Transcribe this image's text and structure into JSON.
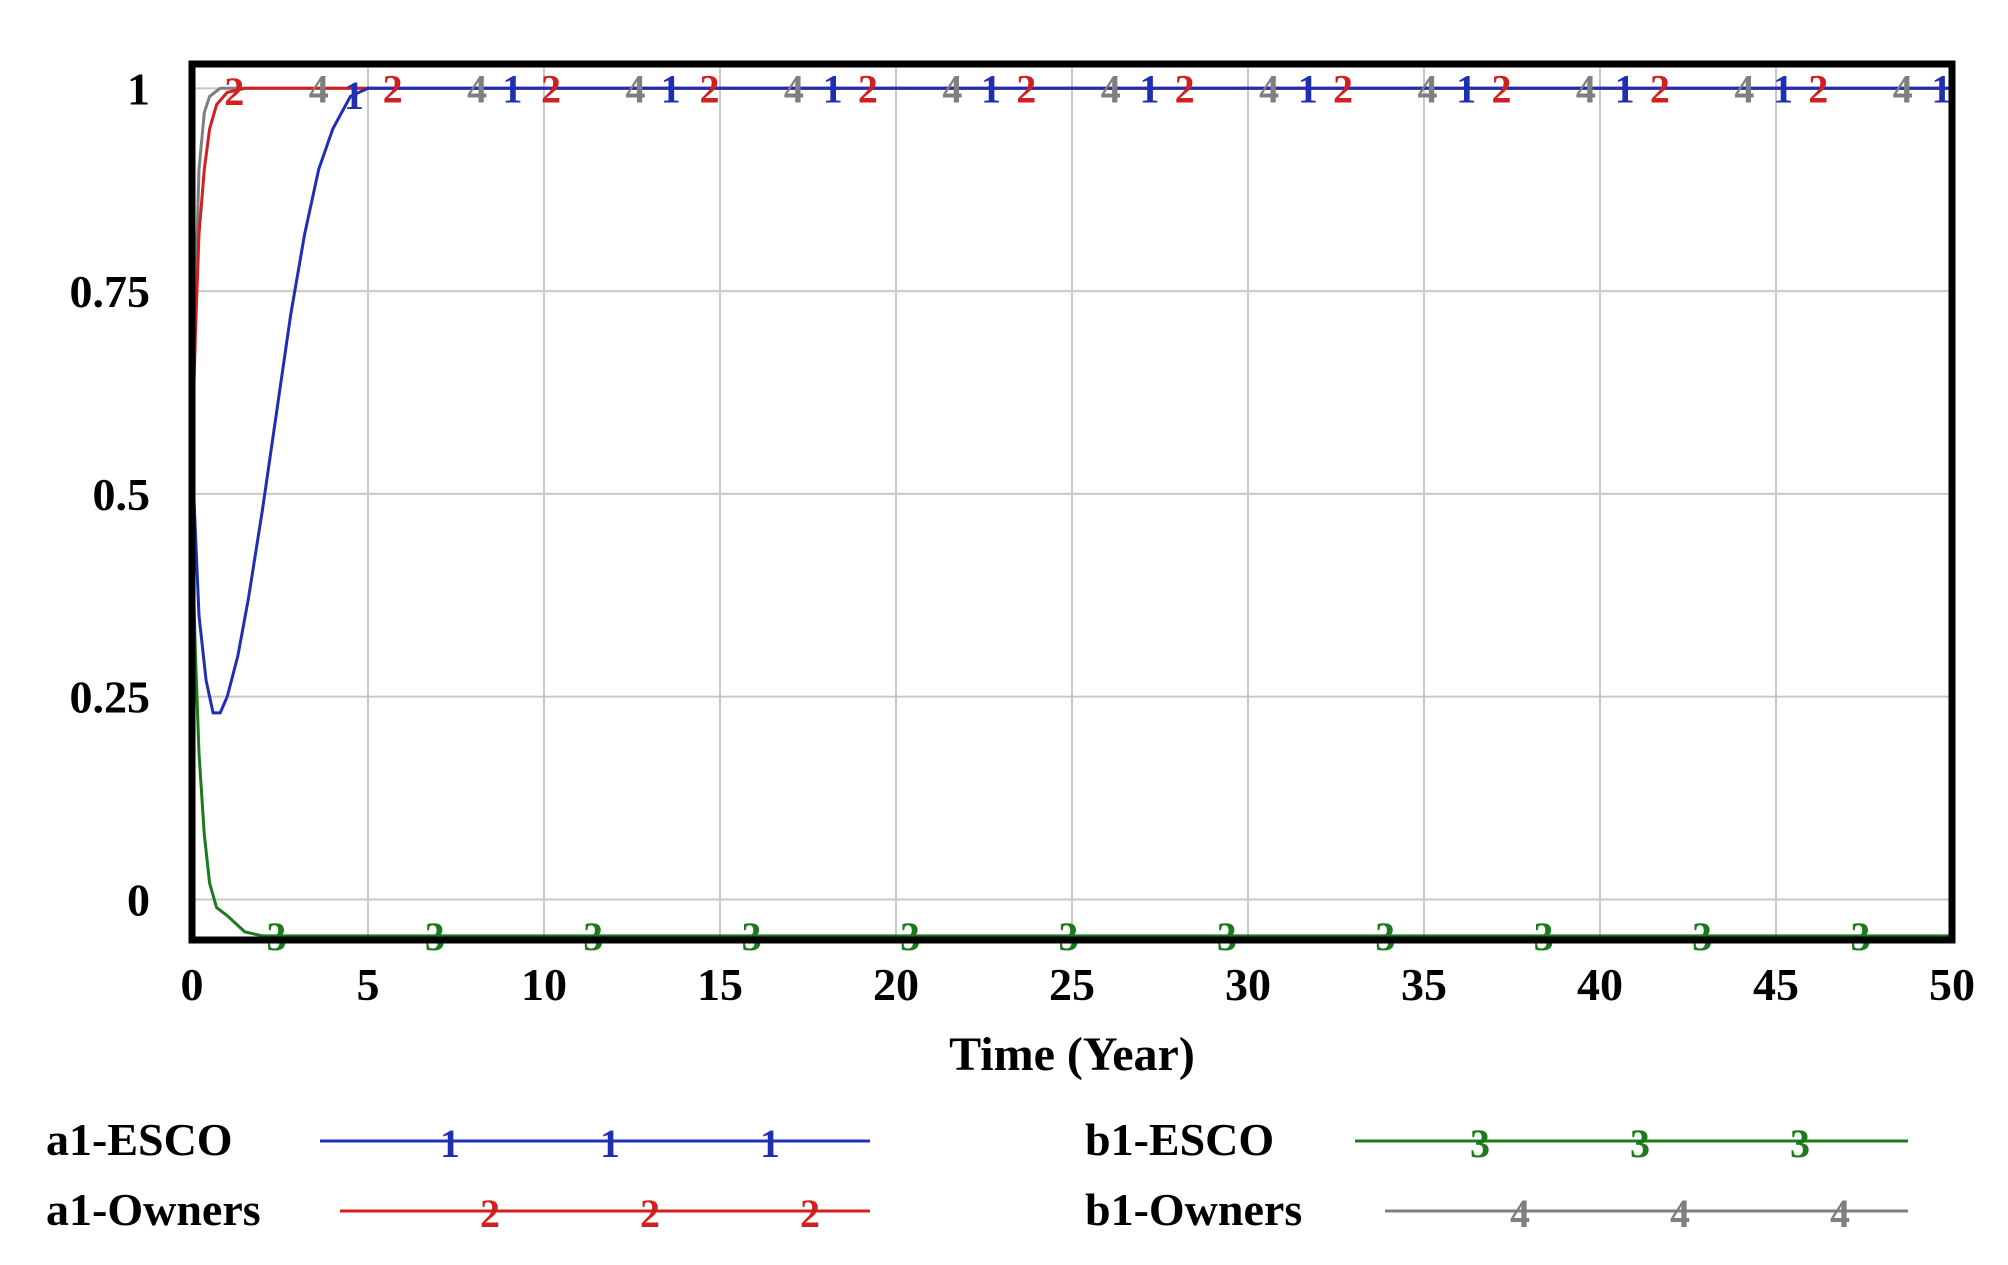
{
  "chart_data": {
    "type": "line",
    "title": "",
    "xlabel": "Time (Year)",
    "ylabel": "",
    "xlim": [
      0,
      50
    ],
    "ylim": [
      -0.05,
      1.03
    ],
    "x_ticks": [
      0,
      5,
      10,
      15,
      20,
      25,
      30,
      35,
      40,
      45,
      50
    ],
    "x_tick_labels": [
      "0",
      "5",
      "10",
      "15",
      "20",
      "25",
      "30",
      "35",
      "40",
      "45",
      "50"
    ],
    "y_ticks": [
      0,
      0.25,
      0.5,
      0.75,
      1
    ],
    "y_tick_labels": [
      "0",
      "0.25",
      "0.5",
      "0.75",
      "1"
    ],
    "grid": true,
    "legend_position": "bottom",
    "series": [
      {
        "name": "a1-ESCO",
        "marker": "1",
        "color": "#1f2fb4",
        "points": [
          [
            0,
            0.55
          ],
          [
            0.2,
            0.35
          ],
          [
            0.4,
            0.27
          ],
          [
            0.6,
            0.23
          ],
          [
            0.8,
            0.23
          ],
          [
            1,
            0.25
          ],
          [
            1.3,
            0.3
          ],
          [
            1.6,
            0.37
          ],
          [
            2,
            0.48
          ],
          [
            2.4,
            0.6
          ],
          [
            2.8,
            0.72
          ],
          [
            3.2,
            0.82
          ],
          [
            3.6,
            0.9
          ],
          [
            4,
            0.95
          ],
          [
            4.5,
            0.99
          ],
          [
            5,
            1.0
          ],
          [
            10,
            1.0
          ],
          [
            20,
            1.0
          ],
          [
            30,
            1.0
          ],
          [
            40,
            1.0
          ],
          [
            50,
            1.0
          ]
        ]
      },
      {
        "name": "a1-Owners",
        "marker": "2",
        "color": "#d21f1f",
        "points": [
          [
            0,
            0.55
          ],
          [
            0.1,
            0.7
          ],
          [
            0.2,
            0.82
          ],
          [
            0.35,
            0.9
          ],
          [
            0.5,
            0.95
          ],
          [
            0.7,
            0.98
          ],
          [
            1,
            0.995
          ],
          [
            1.5,
            1.0
          ],
          [
            5,
            1.0
          ],
          [
            10,
            1.0
          ],
          [
            20,
            1.0
          ],
          [
            30,
            1.0
          ],
          [
            40,
            1.0
          ],
          [
            50,
            1.0
          ]
        ]
      },
      {
        "name": "b1-ESCO",
        "marker": "3",
        "color": "#1b7a1b",
        "points": [
          [
            0,
            0.45
          ],
          [
            0.1,
            0.3
          ],
          [
            0.2,
            0.18
          ],
          [
            0.35,
            0.08
          ],
          [
            0.5,
            0.02
          ],
          [
            0.7,
            -0.01
          ],
          [
            1,
            -0.02
          ],
          [
            1.5,
            -0.04
          ],
          [
            2,
            -0.045
          ],
          [
            3,
            -0.045
          ],
          [
            10,
            -0.045
          ],
          [
            20,
            -0.045
          ],
          [
            30,
            -0.045
          ],
          [
            40,
            -0.045
          ],
          [
            50,
            -0.045
          ]
        ]
      },
      {
        "name": "b1-Owners",
        "marker": "4",
        "color": "#7f7f7f",
        "points": [
          [
            0,
            0.5
          ],
          [
            0.1,
            0.75
          ],
          [
            0.2,
            0.9
          ],
          [
            0.35,
            0.97
          ],
          [
            0.5,
            0.99
          ],
          [
            0.8,
            1.0
          ],
          [
            5,
            1.0
          ],
          [
            10,
            1.0
          ],
          [
            20,
            1.0
          ],
          [
            30,
            1.0
          ],
          [
            40,
            1.0
          ],
          [
            50,
            1.0
          ]
        ]
      }
    ],
    "curve_markers": [
      {
        "series": 0,
        "label": "1",
        "x": [
          4.6,
          9.1,
          13.6,
          18.2,
          22.7,
          27.2,
          31.7,
          36.2,
          40.7,
          45.2,
          49.7
        ]
      },
      {
        "series": 1,
        "label": "2",
        "x": [
          1.2,
          5.7,
          10.2,
          14.7,
          19.2,
          23.7,
          28.2,
          32.7,
          37.2,
          41.7,
          46.2
        ]
      },
      {
        "series": 2,
        "label": "3",
        "x": [
          2.4,
          6.9,
          11.4,
          15.9,
          20.4,
          24.9,
          29.4,
          33.9,
          38.4,
          42.9,
          47.4
        ]
      },
      {
        "series": 3,
        "label": "4",
        "x": [
          3.6,
          8.1,
          12.6,
          17.1,
          21.6,
          26.1,
          30.6,
          35.1,
          39.6,
          44.1,
          48.6
        ]
      }
    ]
  },
  "legend": [
    {
      "name": "a1-ESCO",
      "marker": "1",
      "color": "#1f2fb4"
    },
    {
      "name": "a1-Owners",
      "marker": "2",
      "color": "#d21f1f"
    },
    {
      "name": "b1-ESCO",
      "marker": "3",
      "color": "#1b7a1b"
    },
    {
      "name": "b1-Owners",
      "marker": "4",
      "color": "#7f7f7f"
    }
  ]
}
